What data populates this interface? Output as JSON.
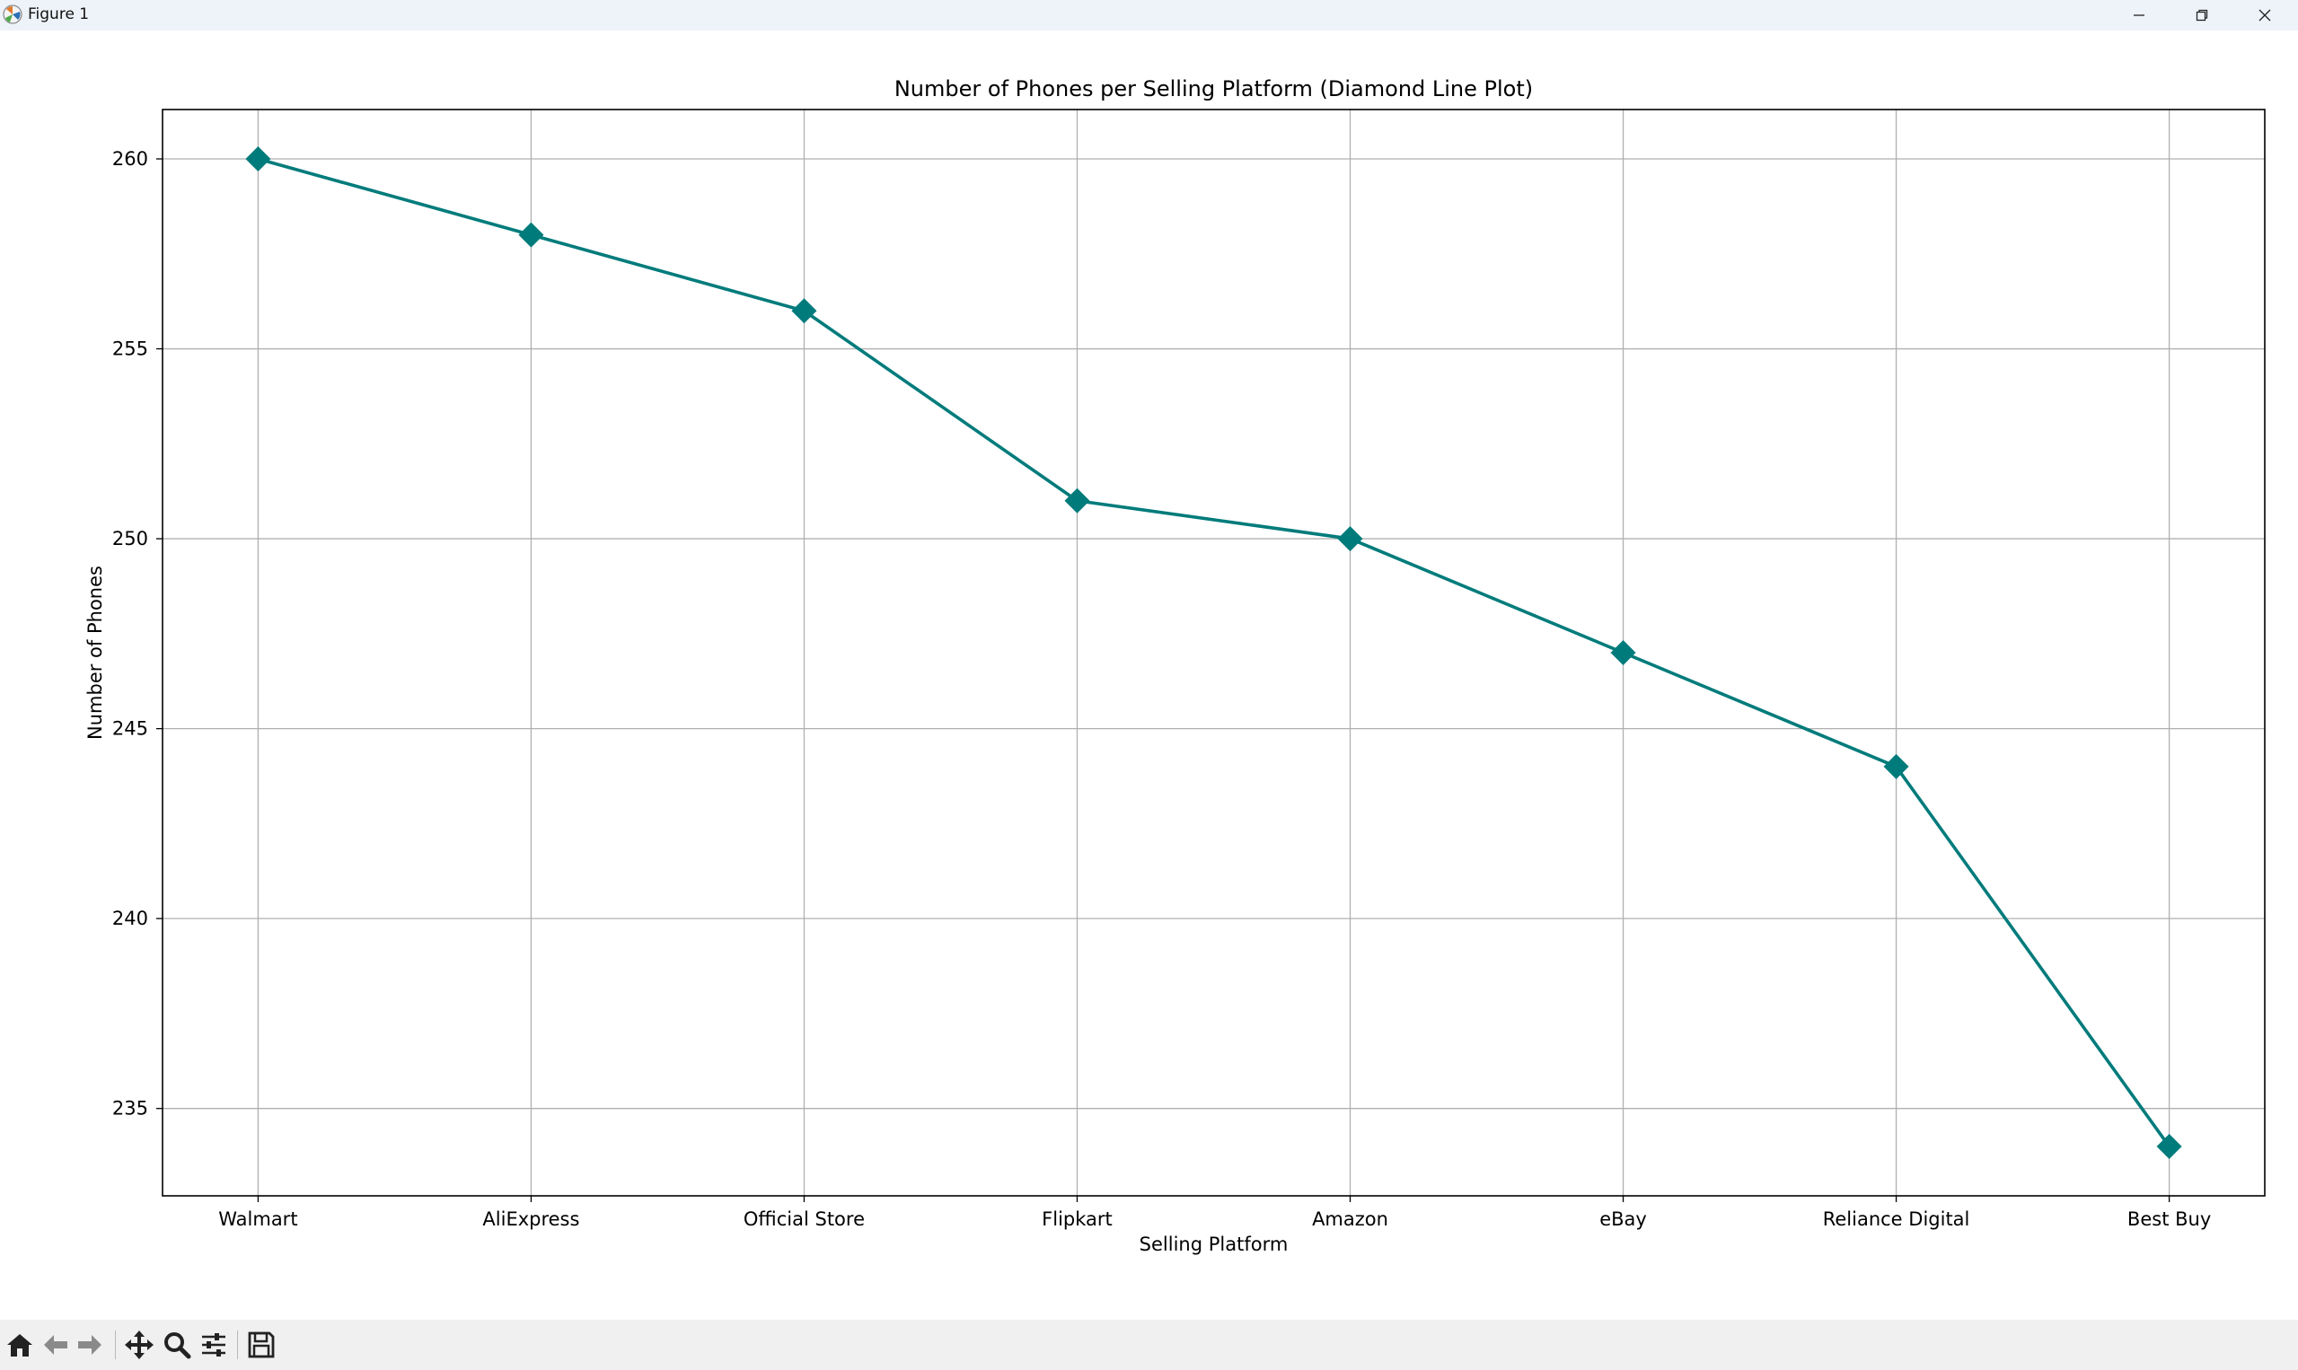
{
  "window": {
    "title": "Figure 1",
    "buttons": [
      "minimize",
      "restore",
      "close"
    ]
  },
  "toolbar": {
    "icons": [
      "home-icon",
      "back-icon",
      "forward-icon",
      "pan-icon",
      "zoom-icon",
      "configure-icon",
      "save-icon"
    ]
  },
  "chart_data": {
    "type": "line",
    "title": "Number of Phones per Selling Platform (Diamond Line Plot)",
    "xlabel": "Selling Platform",
    "ylabel": "Number of Phones",
    "categories": [
      "Walmart",
      "AliExpress",
      "Official Store",
      "Flipkart",
      "Amazon",
      "eBay",
      "Reliance Digital",
      "Best Buy"
    ],
    "values": [
      260,
      258,
      256,
      251,
      250,
      247,
      244,
      234
    ],
    "ylim": [
      232.7,
      261.3
    ],
    "yticks": [
      235,
      240,
      245,
      250,
      255,
      260
    ],
    "marker": "diamond",
    "color": "#007b7b",
    "grid": true
  }
}
